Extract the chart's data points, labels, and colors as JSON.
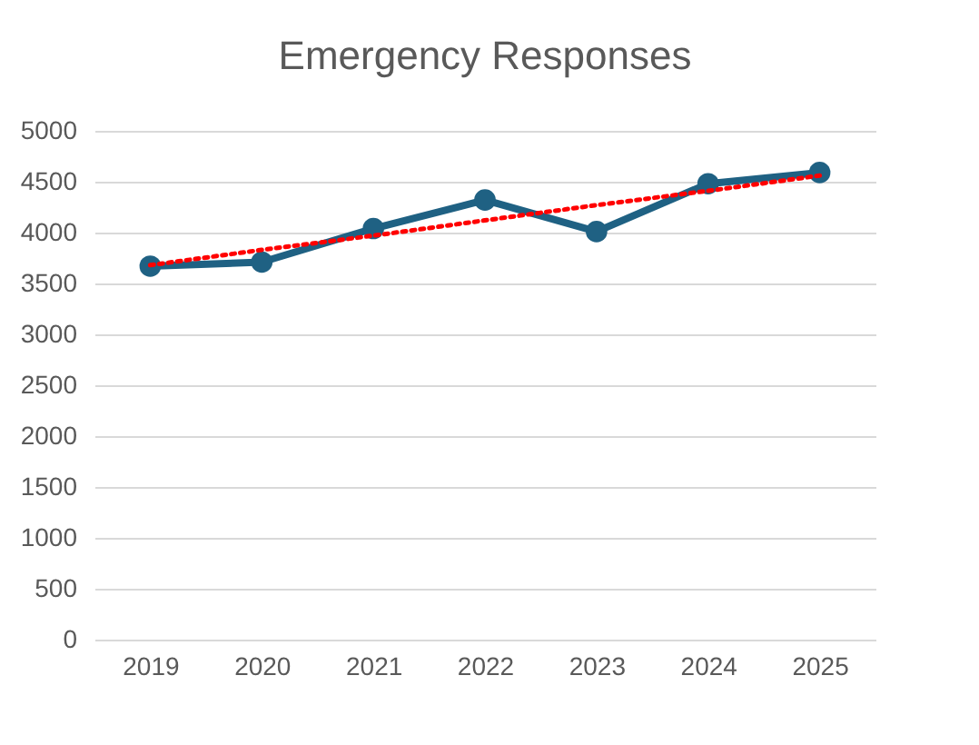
{
  "chart_data": {
    "type": "line",
    "title": "Emergency Responses",
    "categories": [
      "2019",
      "2020",
      "2021",
      "2022",
      "2023",
      "2024",
      "2025"
    ],
    "series": [
      {
        "color": "#1f6183",
        "values": [
          3670,
          3710,
          4040,
          4320,
          4010,
          4480,
          4590
        ],
        "marker": "circle",
        "line_style": "solid"
      },
      {
        "type": "line",
        "color": "#ff0000",
        "values": [
          3680,
          3830,
          3970,
          4120,
          4270,
          4410,
          4560
        ],
        "marker": "none",
        "line_style": "dotted"
      }
    ],
    "ylim": [
      0,
      5000
    ],
    "yticks": [
      0,
      500,
      1000,
      1500,
      2000,
      2500,
      3000,
      3500,
      4000,
      4500,
      5000
    ],
    "grid": "y",
    "legend": false
  }
}
